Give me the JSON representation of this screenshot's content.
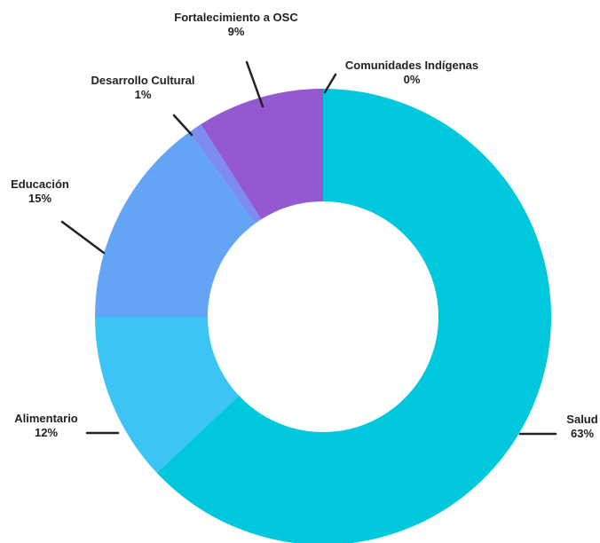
{
  "chart_data": {
    "type": "pie",
    "subtype": "donut",
    "title": "",
    "legend": "none",
    "slices": [
      {
        "label": "Salud",
        "value": 63,
        "display": "63%",
        "color": "#00c8dc"
      },
      {
        "label": "Alimentario",
        "value": 12,
        "display": "12%",
        "color": "#3cc4f4"
      },
      {
        "label": "Educación",
        "value": 15,
        "display": "15%",
        "color": "#64a4f4"
      },
      {
        "label": "Desarrollo Cultural",
        "value": 1,
        "display": "1%",
        "color": "#7c8cf0"
      },
      {
        "label": "Fortalecimiento a OSC",
        "value": 9,
        "display": "9%",
        "color": "#9458d0"
      },
      {
        "label": "Comunidades Indígenas",
        "value": 0,
        "display": "0%",
        "color": "#b070d8"
      }
    ]
  }
}
